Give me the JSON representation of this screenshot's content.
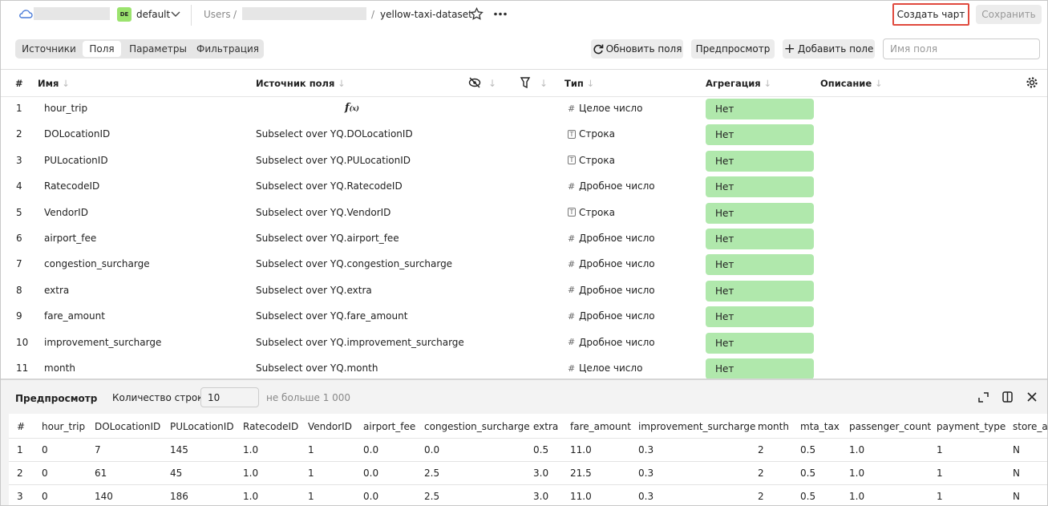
{
  "header": {
    "workspace_badge": "DE",
    "workspace": "default",
    "breadcrumb_root": "Users",
    "dataset": "yellow-taxi-dataset",
    "create_chart": "Создать чарт",
    "save": "Сохранить"
  },
  "tabs": [
    "Источники",
    "Поля",
    "Параметры",
    "Фильтрация"
  ],
  "active_tab": 1,
  "toolbar": {
    "refresh": "Обновить поля",
    "preview": "Предпросмотр",
    "add_field": "Добавить поле",
    "search_placeholder": "Имя поля"
  },
  "fields_table": {
    "columns": {
      "index": "#",
      "name": "Имя",
      "source": "Источник поля",
      "type": "Тип",
      "aggregation": "Агрегация",
      "description": "Описание"
    },
    "rows": [
      {
        "index": 1,
        "name": "hour_trip",
        "type_icon": "#",
        "type": "Целое число",
        "aggregation": "Нет"
      },
      {
        "index": 2,
        "name": "DOLocationID",
        "source": "Subselect over YQ.DOLocationID",
        "type_icon": "T",
        "type": "Строка",
        "aggregation": "Нет"
      },
      {
        "index": 3,
        "name": "PULocationID",
        "source": "Subselect over YQ.PULocationID",
        "type_icon": "T",
        "type": "Строка",
        "aggregation": "Нет"
      },
      {
        "index": 4,
        "name": "RatecodeID",
        "source": "Subselect over YQ.RatecodeID",
        "type_icon": "#",
        "type": "Дробное число",
        "aggregation": "Нет"
      },
      {
        "index": 5,
        "name": "VendorID",
        "source": "Subselect over YQ.VendorID",
        "type_icon": "T",
        "type": "Строка",
        "aggregation": "Нет"
      },
      {
        "index": 6,
        "name": "airport_fee",
        "source": "Subselect over YQ.airport_fee",
        "type_icon": "#",
        "type": "Дробное число",
        "aggregation": "Нет"
      },
      {
        "index": 7,
        "name": "congestion_surcharge",
        "source": "Subselect over YQ.congestion_surcharge",
        "type_icon": "#",
        "type": "Дробное число",
        "aggregation": "Нет"
      },
      {
        "index": 8,
        "name": "extra",
        "source": "Subselect over YQ.extra",
        "type_icon": "#",
        "type": "Дробное число",
        "aggregation": "Нет"
      },
      {
        "index": 9,
        "name": "fare_amount",
        "source": "Subselect over YQ.fare_amount",
        "type_icon": "#",
        "type": "Дробное число",
        "aggregation": "Нет"
      },
      {
        "index": 10,
        "name": "improvement_surcharge",
        "source": "Subselect over YQ.improvement_surcharge",
        "type_icon": "#",
        "type": "Дробное число",
        "aggregation": "Нет"
      },
      {
        "index": 11,
        "name": "month",
        "source": "Subselect over YQ.month",
        "type_icon": "#",
        "type": "Целое число",
        "aggregation": "Нет"
      }
    ]
  },
  "preview": {
    "title": "Предпросмотр",
    "rows_label": "Количество строк:",
    "rows_value": "10",
    "rows_hint": "не больше 1 000",
    "columns": [
      "#",
      "hour_trip",
      "DOLocationID",
      "PULocationID",
      "RatecodeID",
      "VendorID",
      "airport_fee",
      "congestion_surcharge",
      "extra",
      "fare_amount",
      "improvement_surcharge",
      "month",
      "mta_tax",
      "passenger_count",
      "payment_type",
      "store_and_fwd_flag"
    ],
    "rows": [
      [
        "1",
        "0",
        "7",
        "145",
        "1.0",
        "1",
        "0.0",
        "0.0",
        "0.5",
        "11.0",
        "0.3",
        "2",
        "0.5",
        "1.0",
        "1",
        "N"
      ],
      [
        "2",
        "0",
        "61",
        "45",
        "1.0",
        "1",
        "0.0",
        "2.5",
        "3.0",
        "21.5",
        "0.3",
        "2",
        "0.5",
        "1.0",
        "1",
        "N"
      ],
      [
        "3",
        "0",
        "140",
        "186",
        "1.0",
        "1",
        "0.0",
        "2.5",
        "3.0",
        "11.0",
        "0.3",
        "2",
        "0.5",
        "1.0",
        "1",
        "N"
      ]
    ]
  }
}
